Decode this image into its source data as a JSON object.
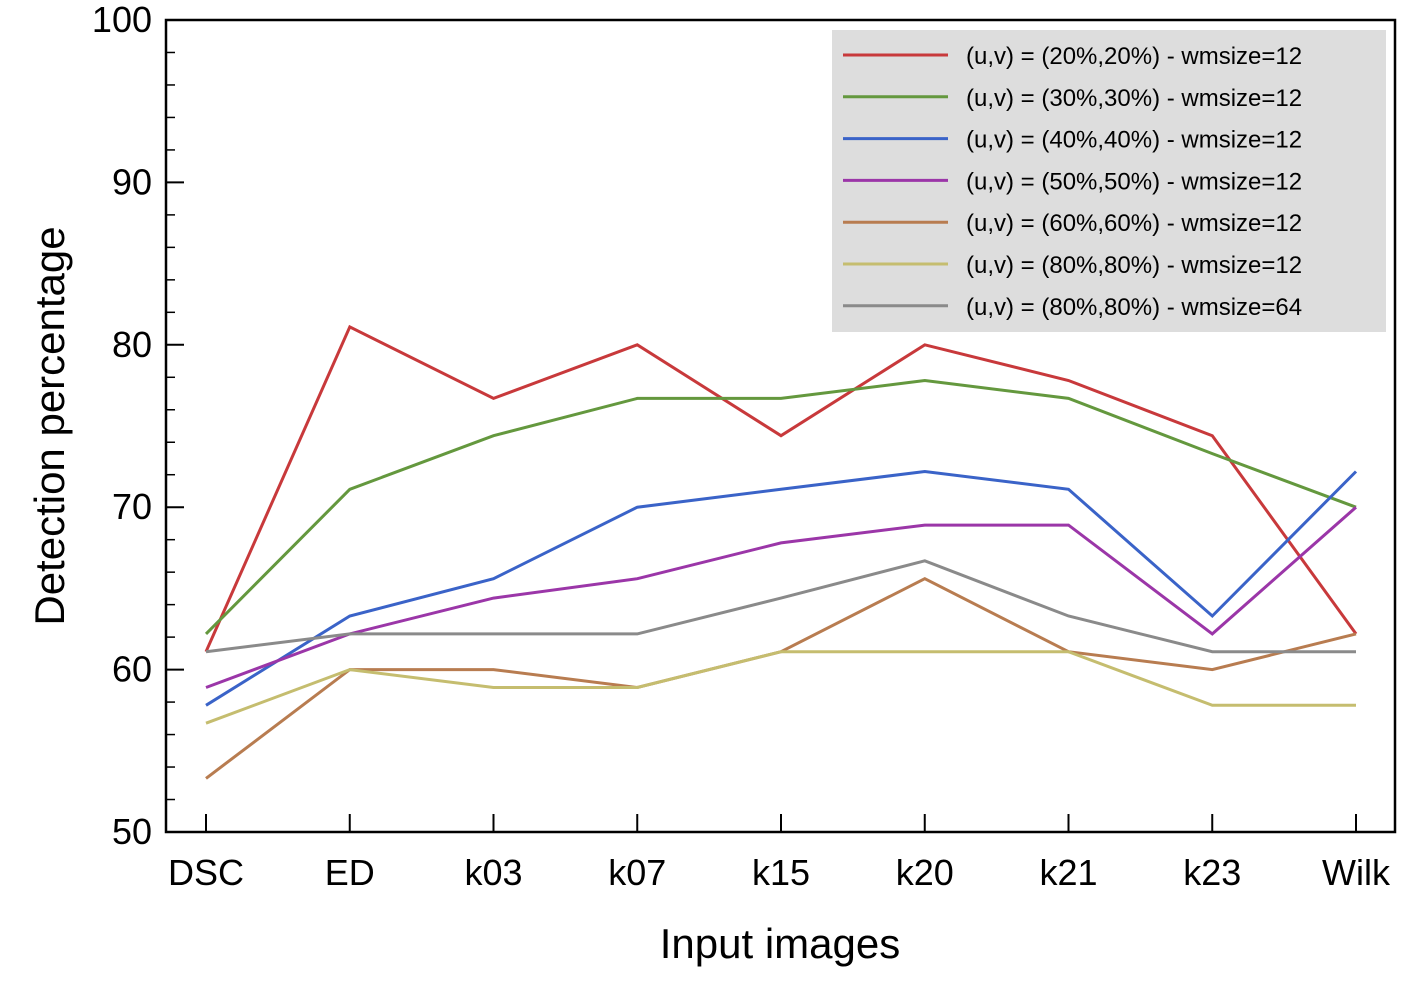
{
  "chart_data": {
    "type": "line",
    "title": "",
    "xlabel": "Input images",
    "ylabel": "Detection percentage",
    "ylim": [
      50,
      100
    ],
    "yticks": [
      50,
      60,
      70,
      80,
      90,
      100
    ],
    "y_minor_step": 2,
    "grid": false,
    "legend_position": "top-right",
    "categories": [
      "DSC",
      "ED",
      "k03",
      "k07",
      "k15",
      "k20",
      "k21",
      "k23",
      "Wilk"
    ],
    "series": [
      {
        "name": "(u,v) = (20%,20%) - wmsize=12",
        "color": "#c8393b",
        "values": [
          61.1,
          81.1,
          76.7,
          80.0,
          74.4,
          80.0,
          77.8,
          74.4,
          62.2
        ]
      },
      {
        "name": "(u,v) = (30%,30%) - wmsize=12",
        "color": "#64983e",
        "values": [
          62.2,
          71.1,
          74.4,
          76.7,
          76.7,
          77.8,
          76.7,
          73.3,
          70.0
        ]
      },
      {
        "name": "(u,v) = (40%,40%) - wmsize=12",
        "color": "#3a63c8",
        "values": [
          57.8,
          63.3,
          65.6,
          70.0,
          71.1,
          72.2,
          71.1,
          63.3,
          72.2
        ]
      },
      {
        "name": "(u,v) = (50%,50%) - wmsize=12",
        "color": "#9b36a8",
        "values": [
          58.9,
          62.2,
          64.4,
          65.6,
          67.8,
          68.9,
          68.9,
          62.2,
          70.0
        ]
      },
      {
        "name": "(u,v) = (60%,60%) - wmsize=12",
        "color": "#b87c50",
        "values": [
          53.3,
          60.0,
          60.0,
          58.9,
          61.1,
          65.6,
          61.1,
          60.0,
          62.2
        ]
      },
      {
        "name": "(u,v) = (80%,80%) - wmsize=12",
        "color": "#c5bd6f",
        "values": [
          56.7,
          60.0,
          58.9,
          58.9,
          61.1,
          61.1,
          61.1,
          57.8,
          57.8
        ]
      },
      {
        "name": "(u,v) = (80%,80%) - wmsize=64",
        "color": "#8a8a8a",
        "values": [
          61.1,
          62.2,
          62.2,
          62.2,
          64.4,
          66.7,
          63.3,
          61.1,
          61.1
        ]
      }
    ]
  }
}
